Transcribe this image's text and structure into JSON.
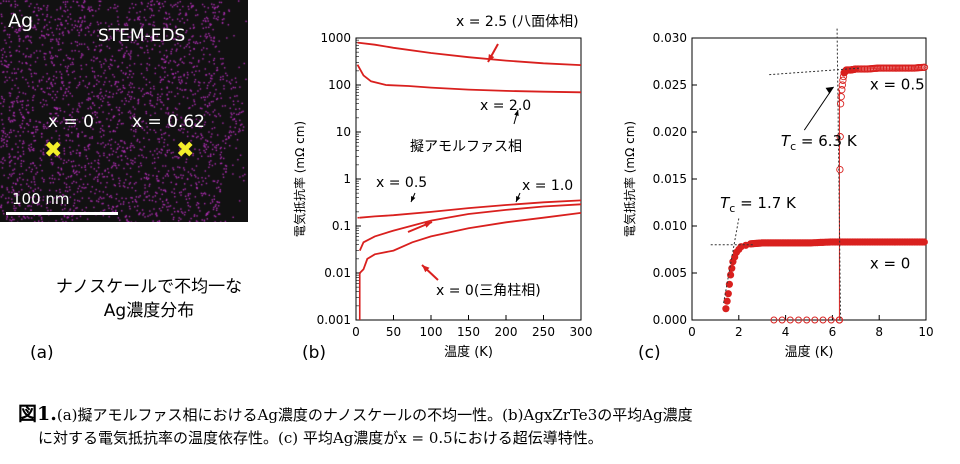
{
  "panel_a": {
    "element_label": "Ag",
    "method_label": "STEM-EDS",
    "point_left_label": "x = 0",
    "point_right_label": "x = 0.62",
    "scale_label": "100 nm",
    "caption_line1": "ナノスケールで不均一な",
    "caption_line2": "Ag濃度分布",
    "panel_letter": "(a)"
  },
  "panel_b_letter": "(b)",
  "panel_c_letter": "(c)",
  "figure_caption": {
    "number": "図1.",
    "text_line1": "(a)擬アモルファス相におけるAg濃度のナノスケールの不均一性。(b)AgxZrTe3の平均Ag濃度",
    "text_line2": "に対する電気抵抗率の温度依存性。(c) 平均Ag濃度がx = 0.5における超伝導特性。"
  },
  "colors": {
    "curve": "#d9201e",
    "cross": "#f3ef2a",
    "eds_dots": "#b02fb4"
  },
  "chart_data": [
    {
      "type": "line",
      "ylabel": "電気抵抗率 (mΩ cm)",
      "xlabel": "温度 (K)",
      "xlim": [
        0,
        300
      ],
      "ylim": [
        0.001,
        1000
      ],
      "yscale": "log",
      "xticks": [
        "0",
        "50",
        "100",
        "150",
        "200",
        "250",
        "300"
      ],
      "yticks": [
        "0.001",
        "0.01",
        "0.1",
        "1",
        "10",
        "100",
        "1000"
      ],
      "annotations": [
        "x = 2.5 (八面体相)",
        "x = 2.0",
        "擬アモルファス相",
        "x = 0.5",
        "x = 1.0",
        "x = 0(三角柱相)"
      ],
      "series": [
        {
          "name": "x = 2.5 (八面体相)",
          "x": [
            2,
            25,
            50,
            100,
            150,
            200,
            250,
            300
          ],
          "y": [
            800,
            720,
            620,
            480,
            390,
            330,
            290,
            265
          ]
        },
        {
          "name": "x = 2.0",
          "x": [
            2,
            10,
            20,
            40,
            70,
            100,
            150,
            200,
            250,
            300
          ],
          "y": [
            270,
            160,
            120,
            100,
            95,
            88,
            80,
            75,
            72,
            70
          ]
        },
        {
          "name": "x = 1.0",
          "x": [
            5,
            25,
            50,
            100,
            150,
            200,
            250,
            300
          ],
          "y": [
            0.15,
            0.16,
            0.17,
            0.2,
            0.24,
            0.28,
            0.32,
            0.35
          ]
        },
        {
          "name": "x = 0.5",
          "x": [
            5,
            10,
            25,
            50,
            100,
            150,
            200,
            250,
            300
          ],
          "y": [
            0.03,
            0.045,
            0.06,
            0.08,
            0.13,
            0.18,
            0.22,
            0.26,
            0.29
          ]
        },
        {
          "name": "x = 0(三角柱相)",
          "x": [
            5,
            10,
            15,
            25,
            50,
            75,
            100,
            150,
            200,
            250,
            300
          ],
          "y": [
            0.01,
            0.012,
            0.02,
            0.025,
            0.03,
            0.045,
            0.06,
            0.09,
            0.12,
            0.15,
            0.19
          ]
        }
      ]
    },
    {
      "type": "scatter",
      "ylabel": "電気抵抗率 (mΩ cm)",
      "xlabel": "温度 (K)",
      "xlim": [
        0,
        10
      ],
      "ylim": [
        0,
        0.03
      ],
      "xticks": [
        "0",
        "2",
        "4",
        "6",
        "8",
        "10"
      ],
      "yticks": [
        "0.000",
        "0.005",
        "0.010",
        "0.015",
        "0.020",
        "0.025",
        "0.030"
      ],
      "annotations": [
        "x = 0.5",
        "x = 0"
      ],
      "tc_labels": [
        {
          "prefix": "T",
          "sub": "c",
          "value": " = 6.3 K"
        },
        {
          "prefix": "T",
          "sub": "c",
          "value": " = 1.7 K"
        }
      ],
      "series": [
        {
          "name": "x = 0.5",
          "marker": "open-circle",
          "x": [
            6.3,
            6.32,
            6.35,
            6.4,
            6.45,
            6.5,
            6.6,
            6.8,
            7.0,
            7.5,
            8.0,
            8.5,
            9.0,
            9.5,
            10.0
          ],
          "y": [
            0.0,
            0.016,
            0.023,
            0.0245,
            0.0255,
            0.0263,
            0.0266,
            0.0266,
            0.0267,
            0.0267,
            0.0268,
            0.0268,
            0.0268,
            0.0268,
            0.0269
          ]
        },
        {
          "name": "x = 0",
          "marker": "filled-circle",
          "x": [
            1.45,
            1.55,
            1.65,
            1.75,
            1.9,
            2.1,
            2.5,
            3.0,
            4.0,
            5.0,
            6.0,
            7.0,
            8.0,
            9.0,
            10.0
          ],
          "y": [
            0.0012,
            0.0028,
            0.0048,
            0.0062,
            0.0072,
            0.0078,
            0.0081,
            0.0082,
            0.0082,
            0.0082,
            0.0083,
            0.0083,
            0.0083,
            0.0083,
            0.0083
          ]
        }
      ]
    }
  ]
}
